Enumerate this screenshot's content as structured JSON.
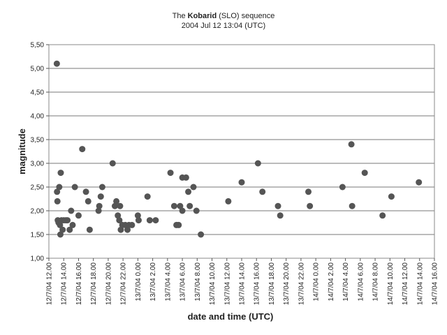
{
  "chart_data": {
    "type": "scatter",
    "title_parts": {
      "prefix": "The ",
      "bold": "Kobarid",
      "suffix": " (SLO) sequence"
    },
    "subtitle": "2004 Jul 12 13:04 (UTC)",
    "xlabel": "date and time (UTC)",
    "ylabel": "magnitude",
    "x_unit": "hours since 12/7/04 12.00",
    "xlim": [
      0,
      52
    ],
    "ylim": [
      1.0,
      5.5
    ],
    "y_ticks": [
      "1,00",
      "1,50",
      "2,00",
      "2,50",
      "3,00",
      "3,50",
      "4,00",
      "4,50",
      "5,00",
      "5,50"
    ],
    "x_ticks": [
      "12/7/04 12.00",
      "12/7/04 14.00",
      "12/7/04 16.00",
      "12/7/04 18.00",
      "12/7/04 20.00",
      "12/7/04 22.00",
      "13/7/04 0.00",
      "13/7/04 2.00",
      "13/7/04 4.00",
      "13/7/04 6.00",
      "13/7/04 8.00",
      "13/7/04 10.00",
      "13/7/04 12.00",
      "13/7/04 14.00",
      "13/7/04 16.00",
      "13/7/04 18.00",
      "13/7/04 20.00",
      "13/7/04 22.00",
      "14/7/04 0.00",
      "14/7/04 2.00",
      "14/7/04 4.00",
      "14/7/04 6.00",
      "14/7/04 8.00",
      "14/7/04 10.00",
      "14/7/04 12.00",
      "14/7/04 14.00",
      "14/7/04 16.00"
    ],
    "grid": "horizontal",
    "marker_color": "#555555",
    "points": [
      {
        "x": 1.07,
        "y": 5.1
      },
      {
        "x": 1.1,
        "y": 2.4
      },
      {
        "x": 1.15,
        "y": 2.2
      },
      {
        "x": 1.2,
        "y": 1.8
      },
      {
        "x": 1.3,
        "y": 1.75
      },
      {
        "x": 1.4,
        "y": 2.5
      },
      {
        "x": 1.5,
        "y": 1.7
      },
      {
        "x": 1.6,
        "y": 2.8
      },
      {
        "x": 1.55,
        "y": 1.5
      },
      {
        "x": 1.7,
        "y": 1.8
      },
      {
        "x": 1.85,
        "y": 1.6
      },
      {
        "x": 2.0,
        "y": 1.8
      },
      {
        "x": 2.3,
        "y": 1.8
      },
      {
        "x": 2.5,
        "y": 1.8
      },
      {
        "x": 2.8,
        "y": 1.6
      },
      {
        "x": 3.0,
        "y": 2.0
      },
      {
        "x": 3.2,
        "y": 1.7
      },
      {
        "x": 3.5,
        "y": 2.5
      },
      {
        "x": 4.0,
        "y": 1.9
      },
      {
        "x": 4.5,
        "y": 3.3
      },
      {
        "x": 5.0,
        "y": 2.4
      },
      {
        "x": 5.3,
        "y": 2.2
      },
      {
        "x": 5.5,
        "y": 1.6
      },
      {
        "x": 6.7,
        "y": 2.0
      },
      {
        "x": 6.8,
        "y": 2.1
      },
      {
        "x": 7.0,
        "y": 2.3
      },
      {
        "x": 7.2,
        "y": 2.5
      },
      {
        "x": 8.6,
        "y": 3.0
      },
      {
        "x": 8.9,
        "y": 2.1
      },
      {
        "x": 9.1,
        "y": 2.2
      },
      {
        "x": 9.3,
        "y": 1.9
      },
      {
        "x": 9.5,
        "y": 1.8
      },
      {
        "x": 9.6,
        "y": 2.1
      },
      {
        "x": 9.7,
        "y": 1.6
      },
      {
        "x": 9.9,
        "y": 1.7
      },
      {
        "x": 10.3,
        "y": 1.7
      },
      {
        "x": 10.6,
        "y": 1.6
      },
      {
        "x": 10.8,
        "y": 1.7
      },
      {
        "x": 11.2,
        "y": 1.7
      },
      {
        "x": 12.0,
        "y": 1.9
      },
      {
        "x": 12.1,
        "y": 1.8
      },
      {
        "x": 13.3,
        "y": 2.3
      },
      {
        "x": 13.6,
        "y": 1.8
      },
      {
        "x": 14.4,
        "y": 1.8
      },
      {
        "x": 16.4,
        "y": 2.8
      },
      {
        "x": 16.9,
        "y": 2.1
      },
      {
        "x": 17.2,
        "y": 1.7
      },
      {
        "x": 17.5,
        "y": 1.7
      },
      {
        "x": 17.7,
        "y": 2.1
      },
      {
        "x": 18.0,
        "y": 2.7
      },
      {
        "x": 18.0,
        "y": 2.0
      },
      {
        "x": 18.5,
        "y": 2.7
      },
      {
        "x": 18.8,
        "y": 2.4
      },
      {
        "x": 19.0,
        "y": 2.1
      },
      {
        "x": 19.5,
        "y": 2.5
      },
      {
        "x": 19.9,
        "y": 2.0
      },
      {
        "x": 20.5,
        "y": 1.5
      },
      {
        "x": 24.2,
        "y": 2.2
      },
      {
        "x": 26.0,
        "y": 2.6
      },
      {
        "x": 28.2,
        "y": 3.0
      },
      {
        "x": 28.8,
        "y": 2.4
      },
      {
        "x": 30.9,
        "y": 2.1
      },
      {
        "x": 31.2,
        "y": 1.9
      },
      {
        "x": 35.0,
        "y": 2.4
      },
      {
        "x": 35.2,
        "y": 2.1
      },
      {
        "x": 39.6,
        "y": 2.5
      },
      {
        "x": 40.8,
        "y": 3.4
      },
      {
        "x": 40.9,
        "y": 2.1
      },
      {
        "x": 42.6,
        "y": 2.8
      },
      {
        "x": 45.0,
        "y": 1.9
      },
      {
        "x": 46.2,
        "y": 2.3
      },
      {
        "x": 49.9,
        "y": 2.6
      }
    ]
  }
}
